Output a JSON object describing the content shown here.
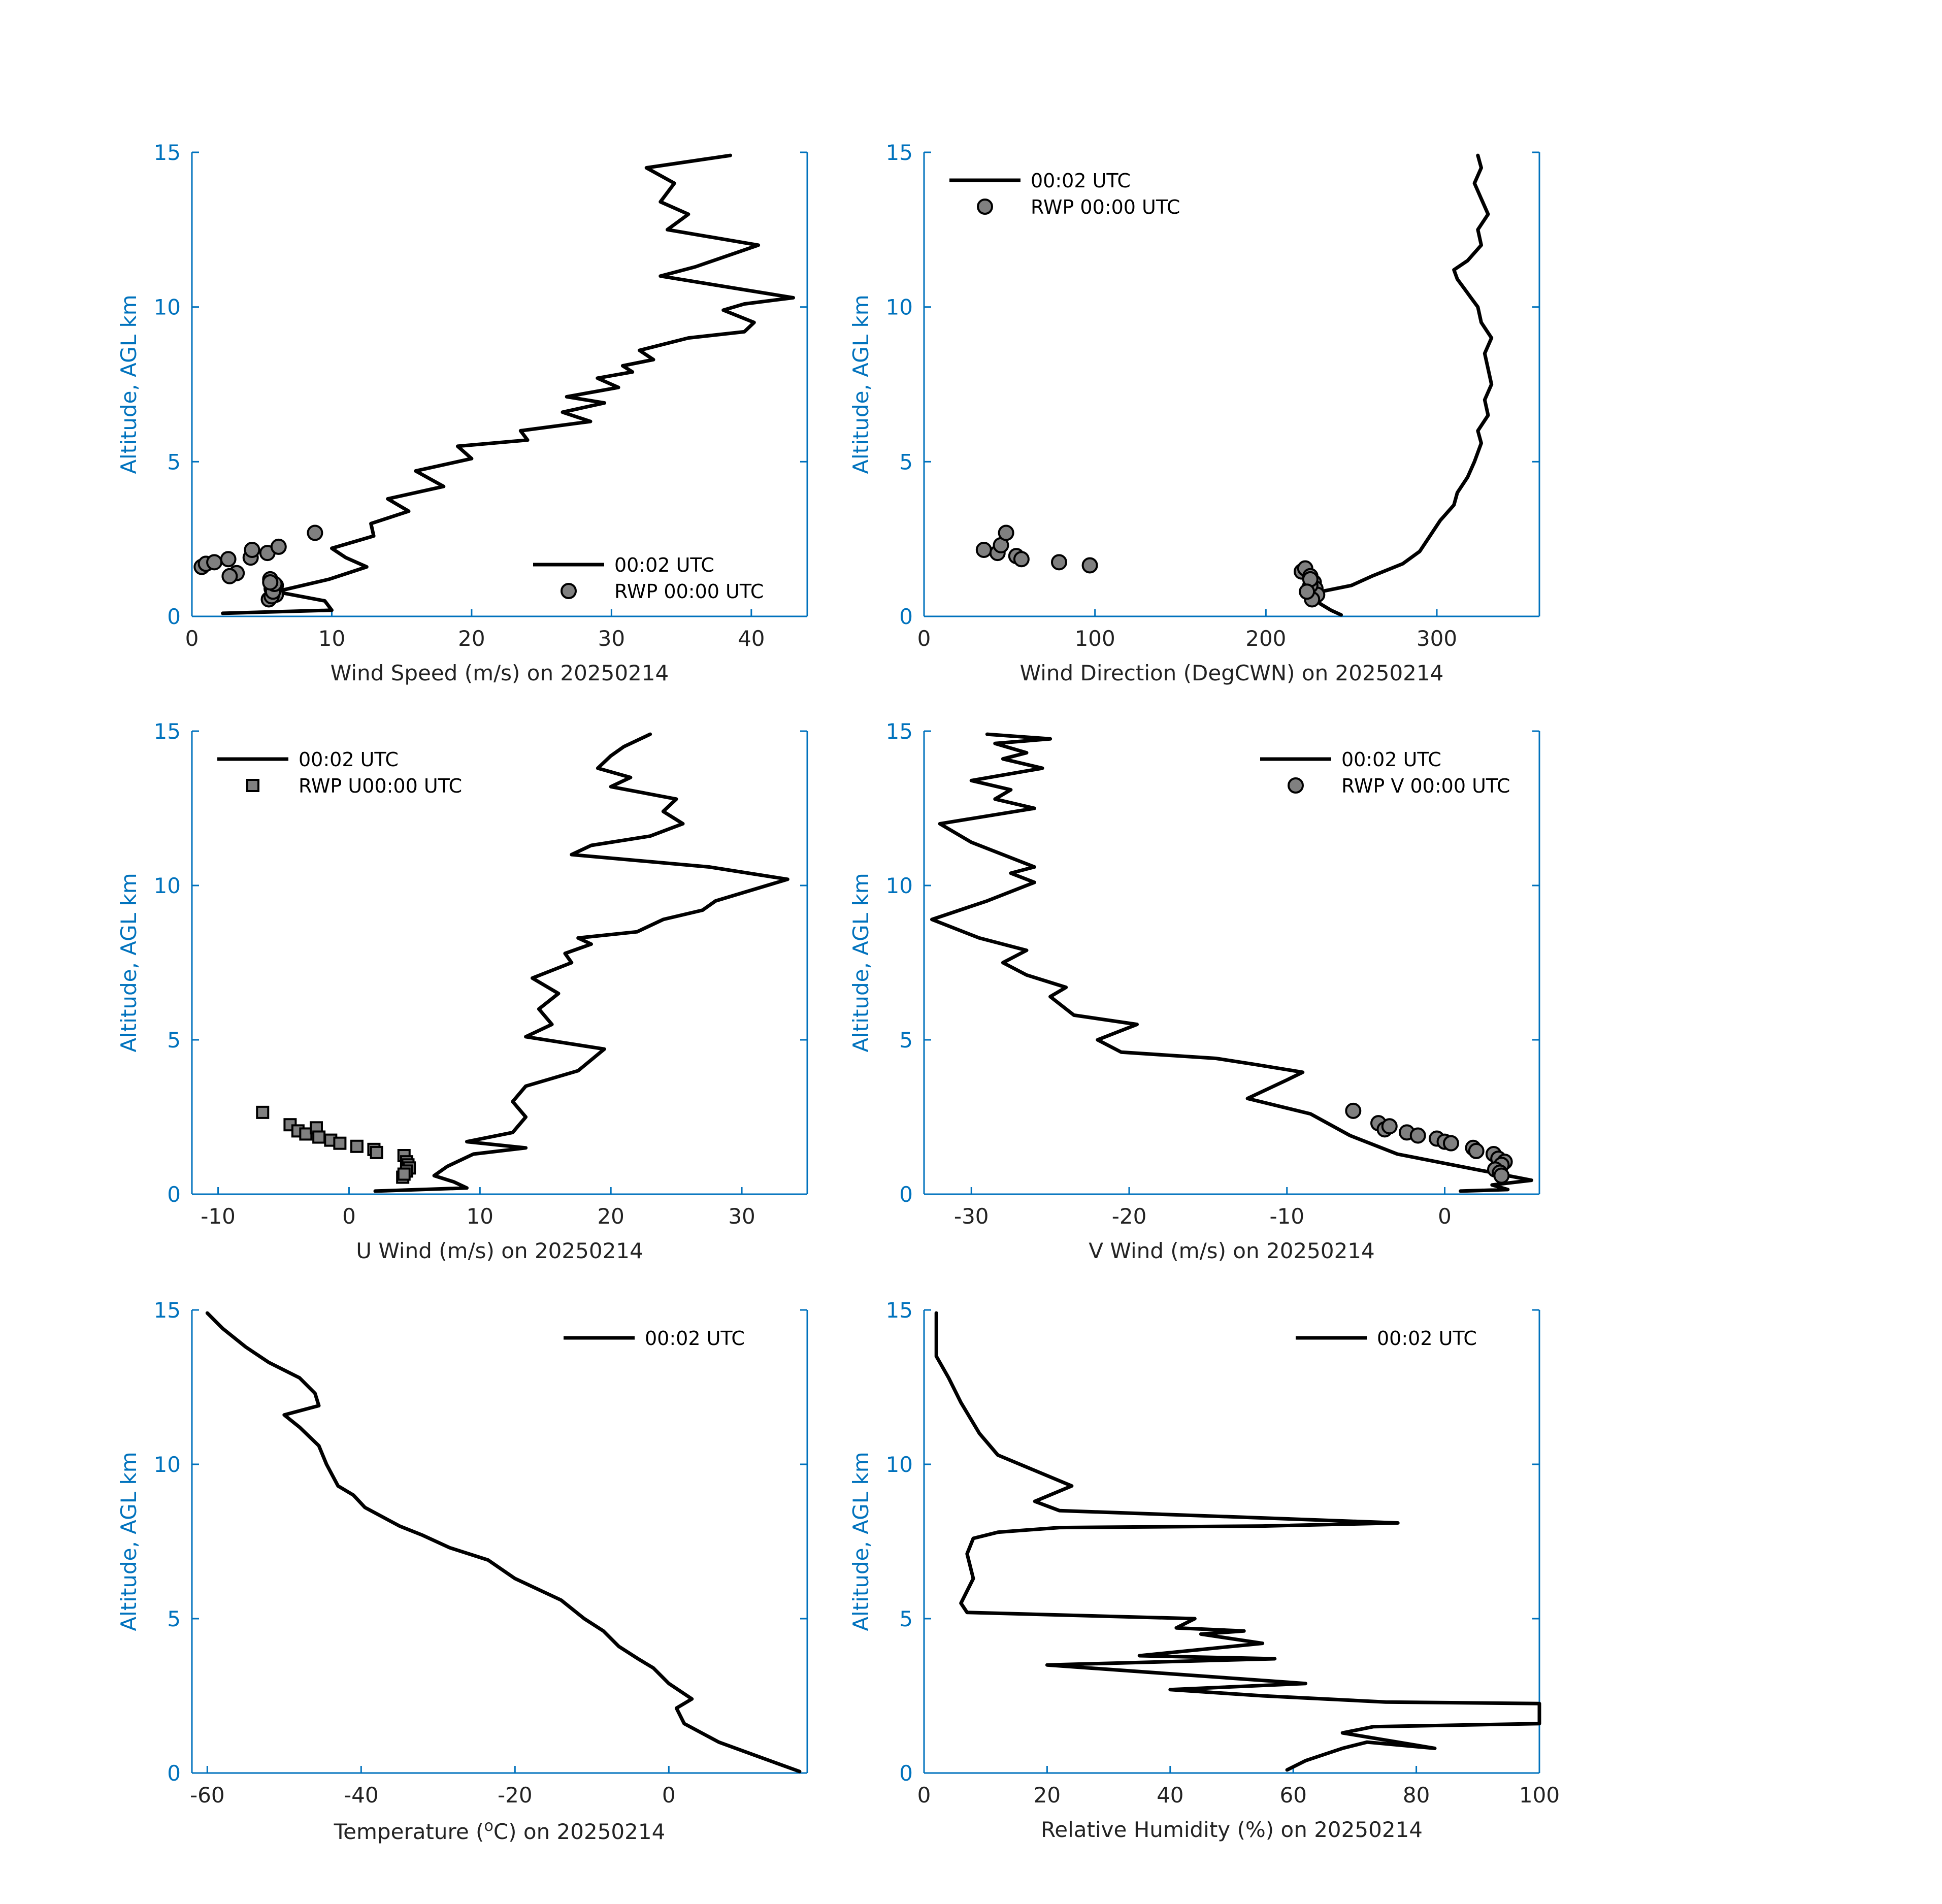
{
  "chart_data": [
    {
      "type": "line",
      "xlabel": "Wind Speed (m/s) on 20250214",
      "ylabel": "Altitude, AGL km",
      "xlim": [
        0,
        44
      ],
      "ylim": [
        0,
        15
      ],
      "xticks": [
        0,
        10,
        20,
        30,
        40
      ],
      "yticks": [
        0,
        5,
        10,
        15
      ],
      "legend_position": "bottom-right",
      "series": [
        {
          "name": "00:02 UTC",
          "kind": "line",
          "x": [
            2.2,
            10.0,
            9.5,
            6.0,
            9.8,
            12.5,
            11.0,
            10.0,
            13.0,
            12.8,
            15.5,
            14.0,
            18.0,
            16.0,
            20.0,
            19.0,
            24.0,
            23.5,
            28.5,
            26.5,
            29.5,
            26.8,
            30.5,
            29.0,
            31.5,
            30.8,
            33.0,
            32.0,
            35.5,
            39.5,
            40.2,
            38.0,
            39.5,
            43.0,
            33.5,
            36.0,
            40.5,
            34.0,
            35.5,
            33.5,
            34.5,
            32.5,
            38.5
          ],
          "y": [
            0.1,
            0.2,
            0.5,
            0.8,
            1.2,
            1.6,
            1.9,
            2.2,
            2.6,
            3.0,
            3.4,
            3.8,
            4.2,
            4.7,
            5.1,
            5.5,
            5.7,
            6.0,
            6.3,
            6.6,
            6.9,
            7.1,
            7.4,
            7.7,
            7.9,
            8.1,
            8.3,
            8.6,
            9.0,
            9.2,
            9.5,
            9.9,
            10.1,
            10.3,
            11.0,
            11.3,
            12.0,
            12.5,
            13.0,
            13.4,
            14.0,
            14.5,
            14.9
          ]
        },
        {
          "name": "RWP 00:00 UTC",
          "kind": "circle",
          "x": [
            0.7,
            1.0,
            1.6,
            2.6,
            3.2,
            4.2,
            4.3,
            5.4,
            5.6,
            5.7,
            6.0,
            6.0,
            6.2,
            8.8,
            2.7,
            5.5,
            5.7,
            5.8,
            5.9,
            5.6
          ],
          "y": [
            1.6,
            1.7,
            1.75,
            1.85,
            1.4,
            1.9,
            2.15,
            2.05,
            1.2,
            0.9,
            0.7,
            1.0,
            2.25,
            2.7,
            1.3,
            0.55,
            0.65,
            0.8,
            1.05,
            1.1
          ]
        }
      ]
    },
    {
      "type": "line",
      "xlabel": "Wind Direction (DegCWN) on 20250214",
      "ylabel": "Altitude, AGL km",
      "xlim": [
        0,
        360
      ],
      "ylim": [
        0,
        15
      ],
      "xticks": [
        0,
        100,
        200,
        300
      ],
      "yticks": [
        0,
        5,
        10,
        15
      ],
      "legend_position": "top-left",
      "series": [
        {
          "name": "00:02 UTC",
          "kind": "line",
          "x": [
            244,
            238,
            232,
            228,
            232,
            250,
            262,
            280,
            290,
            296,
            302,
            310,
            312,
            318,
            322,
            326,
            324,
            330,
            328,
            332,
            330,
            328,
            332,
            326,
            324,
            320,
            316,
            312,
            310,
            318,
            326,
            324,
            330,
            326,
            322,
            326,
            324
          ],
          "y": [
            0.05,
            0.2,
            0.4,
            0.6,
            0.8,
            1.0,
            1.3,
            1.7,
            2.1,
            2.6,
            3.1,
            3.6,
            4.0,
            4.5,
            5.0,
            5.6,
            6.0,
            6.5,
            7.0,
            7.5,
            8.0,
            8.5,
            9.0,
            9.5,
            10.0,
            10.3,
            10.6,
            10.9,
            11.2,
            11.5,
            12.0,
            12.5,
            13.0,
            13.5,
            14.0,
            14.5,
            14.9
          ]
        },
        {
          "name": "RWP 00:00 UTC",
          "kind": "circle",
          "x": [
            35,
            43,
            45,
            48,
            54,
            57,
            79,
            97,
            221,
            223,
            226,
            228,
            229,
            230,
            227,
            226,
            226,
            224
          ],
          "y": [
            2.15,
            2.05,
            2.3,
            2.7,
            1.95,
            1.85,
            1.75,
            1.65,
            1.45,
            1.55,
            1.3,
            1.1,
            0.9,
            0.7,
            0.55,
            1.0,
            1.2,
            0.8
          ]
        }
      ]
    },
    {
      "type": "line",
      "xlabel": "U Wind (m/s) on 20250214",
      "ylabel": "Altitude, AGL km",
      "xlim": [
        -12,
        35
      ],
      "ylim": [
        0,
        15
      ],
      "xticks": [
        -10,
        0,
        10,
        20,
        30
      ],
      "yticks": [
        0,
        5,
        10,
        15
      ],
      "legend_position": "top-left",
      "series": [
        {
          "name": "00:02 UTC",
          "kind": "line",
          "x": [
            2.0,
            9.0,
            8.0,
            6.5,
            7.5,
            9.5,
            13.5,
            9.0,
            12.5,
            13.5,
            12.5,
            13.5,
            17.5,
            19.5,
            13.5,
            15.5,
            14.5,
            16.0,
            14.0,
            17.0,
            16.5,
            18.5,
            17.5,
            22.0,
            24.0,
            27.0,
            28.0,
            33.5,
            27.5,
            17.0,
            18.5,
            23.0,
            25.5,
            24.0,
            25.0,
            20.0,
            21.5,
            19.0,
            20.0,
            21.0,
            23.0
          ],
          "y": [
            0.1,
            0.2,
            0.4,
            0.6,
            0.9,
            1.3,
            1.5,
            1.7,
            2.0,
            2.5,
            3.0,
            3.5,
            4.0,
            4.7,
            5.1,
            5.5,
            6.0,
            6.5,
            7.0,
            7.5,
            7.8,
            8.1,
            8.3,
            8.5,
            8.9,
            9.2,
            9.5,
            10.2,
            10.6,
            11.0,
            11.3,
            11.6,
            12.0,
            12.4,
            12.8,
            13.2,
            13.5,
            13.8,
            14.2,
            14.5,
            14.9
          ]
        },
        {
          "name": "RWP U00:00 UTC",
          "kind": "square",
          "x": [
            -6.6,
            -4.5,
            -3.9,
            -3.3,
            -2.5,
            -2.3,
            -1.4,
            -0.7,
            0.6,
            1.9,
            2.1,
            4.2,
            4.4,
            4.5,
            4.6,
            4.4,
            4.1,
            4.2
          ],
          "y": [
            2.65,
            2.25,
            2.05,
            1.95,
            2.15,
            1.85,
            1.75,
            1.65,
            1.55,
            1.45,
            1.35,
            1.25,
            1.05,
            0.95,
            0.85,
            0.75,
            0.55,
            0.65
          ]
        }
      ]
    },
    {
      "type": "line",
      "xlabel": "V Wind (m/s) on 20250214",
      "ylabel": "Altitude, AGL km",
      "xlim": [
        -33,
        6
      ],
      "ylim": [
        0,
        15
      ],
      "xticks": [
        -30,
        -20,
        -10,
        0
      ],
      "yticks": [
        0,
        5,
        10,
        15
      ],
      "legend_position": "top-right",
      "series": [
        {
          "name": "00:02 UTC",
          "kind": "line",
          "x": [
            1.0,
            4.0,
            3.0,
            5.5,
            2.0,
            -3.0,
            -6.0,
            -8.5,
            -12.5,
            -10.0,
            -9.0,
            -12.0,
            -14.5,
            -20.5,
            -22.0,
            -19.5,
            -23.5,
            -25.0,
            -24.0,
            -26.5,
            -28.0,
            -26.5,
            -29.5,
            -32.5,
            -29.0,
            -26.0,
            -27.5,
            -26.0,
            -30.0,
            -32.0,
            -26.0,
            -28.5,
            -27.5,
            -30.0,
            -25.5,
            -28.0,
            -26.5,
            -28.5,
            -25.0,
            -29.0
          ],
          "y": [
            0.1,
            0.15,
            0.3,
            0.45,
            0.8,
            1.3,
            1.9,
            2.6,
            3.1,
            3.7,
            3.95,
            4.2,
            4.4,
            4.6,
            5.0,
            5.5,
            5.8,
            6.4,
            6.7,
            7.1,
            7.5,
            7.9,
            8.3,
            8.9,
            9.5,
            10.1,
            10.4,
            10.6,
            11.4,
            12.0,
            12.5,
            12.8,
            13.1,
            13.4,
            13.8,
            14.1,
            14.3,
            14.6,
            14.75,
            14.9
          ]
        },
        {
          "name": "RWP V 00:00 UTC",
          "kind": "circle",
          "x": [
            -5.8,
            -4.2,
            -3.8,
            -3.5,
            -2.4,
            -1.7,
            -0.5,
            0.0,
            0.4,
            1.8,
            2.0,
            3.1,
            3.4,
            3.8,
            3.6,
            3.2,
            3.5,
            3.6
          ],
          "y": [
            2.7,
            2.3,
            2.1,
            2.2,
            2.0,
            1.9,
            1.8,
            1.7,
            1.65,
            1.5,
            1.4,
            1.3,
            1.15,
            1.05,
            0.95,
            0.8,
            0.7,
            0.6
          ]
        }
      ]
    },
    {
      "type": "line",
      "xlabel": "Temperature (°C) on 20250214",
      "ylabel": "Altitude, AGL km",
      "xlim": [
        -62,
        18
      ],
      "ylim": [
        0,
        15
      ],
      "xticks": [
        -60,
        -40,
        -20,
        0
      ],
      "yticks": [
        0,
        5,
        10,
        15
      ],
      "legend_position": "top-right",
      "series": [
        {
          "name": "00:02 UTC",
          "kind": "line",
          "x": [
            17.0,
            12.0,
            6.5,
            2.0,
            1.0,
            3.0,
            0.0,
            -2.0,
            -4.0,
            -6.5,
            -8.5,
            -11.0,
            -14.0,
            -20.0,
            -23.5,
            -28.5,
            -32.0,
            -35.0,
            -36.5,
            -39.5,
            -41.0,
            -43.0,
            -44.5,
            -45.5,
            -48.0,
            -50.0,
            -45.5,
            -46.0,
            -48.0,
            -52.0,
            -55.0,
            -58.0,
            -60.0
          ],
          "y": [
            0.05,
            0.5,
            1.0,
            1.6,
            2.1,
            2.4,
            2.9,
            3.4,
            3.7,
            4.1,
            4.6,
            5.0,
            5.6,
            6.3,
            6.9,
            7.3,
            7.7,
            8.0,
            8.2,
            8.6,
            9.0,
            9.3,
            10.0,
            10.6,
            11.2,
            11.6,
            11.9,
            12.3,
            12.8,
            13.3,
            13.8,
            14.4,
            14.9
          ]
        }
      ]
    },
    {
      "type": "line",
      "xlabel": "Relative Humidity (%) on 20250214",
      "ylabel": "Altitude, AGL km",
      "xlim": [
        0,
        100
      ],
      "ylim": [
        0,
        15
      ],
      "xticks": [
        0,
        20,
        40,
        60,
        80,
        100
      ],
      "yticks": [
        0,
        5,
        10,
        15
      ],
      "legend_position": "top-right",
      "series": [
        {
          "name": "00:02 UTC",
          "kind": "line",
          "x": [
            59,
            62,
            68,
            72,
            83,
            68,
            73,
            100,
            100,
            100,
            100,
            75,
            55,
            40,
            62,
            20,
            57,
            35,
            55,
            45,
            52,
            41,
            44,
            7,
            6,
            8,
            7,
            8,
            12,
            22,
            55,
            77,
            50,
            22,
            18,
            24,
            12,
            9,
            6,
            4,
            2,
            2
          ],
          "y": [
            0.1,
            0.4,
            0.8,
            1.0,
            0.8,
            1.3,
            1.5,
            1.6,
            1.9,
            2.2,
            2.25,
            2.3,
            2.5,
            2.7,
            2.9,
            3.5,
            3.7,
            3.8,
            4.2,
            4.5,
            4.6,
            4.7,
            5.0,
            5.2,
            5.5,
            6.3,
            7.1,
            7.6,
            7.8,
            7.95,
            8.0,
            8.1,
            8.3,
            8.5,
            8.8,
            9.3,
            10.3,
            11.0,
            12.0,
            12.8,
            13.5,
            14.9
          ]
        }
      ]
    }
  ]
}
